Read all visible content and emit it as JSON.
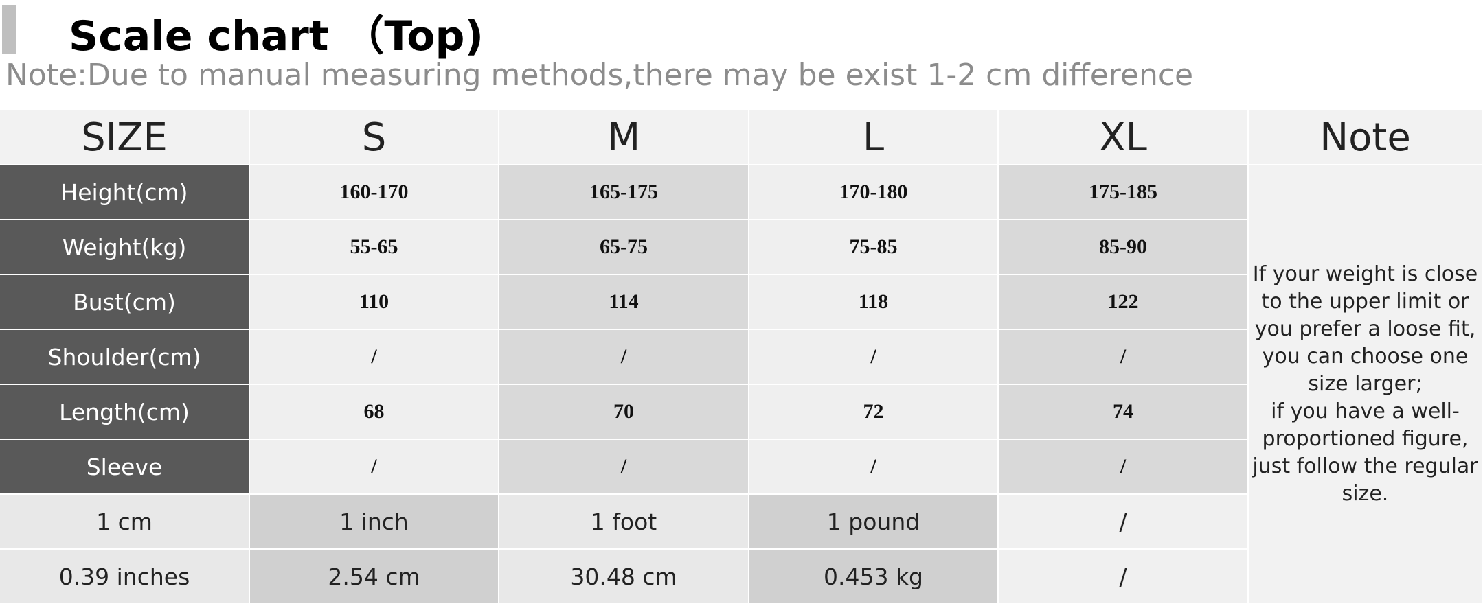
{
  "header": {
    "title": "Scale chart （Top)",
    "note": "Note:Due to manual measuring methods,there may be exist 1-2 cm difference"
  },
  "table": {
    "columns": [
      "SIZE",
      "S",
      "M",
      "L",
      "XL",
      "Note"
    ],
    "rows": [
      [
        "Height(cm)",
        "160-170",
        "165-175",
        "170-180",
        "175-185"
      ],
      [
        "Weight(kg)",
        "55-65",
        "65-75",
        "75-85",
        "85-90"
      ],
      [
        "Bust(cm)",
        "110",
        "114",
        "118",
        "122"
      ],
      [
        "Shoulder(cm)",
        "/",
        "/",
        "/",
        "/"
      ],
      [
        "Length(cm)",
        "68",
        "70",
        "72",
        "74"
      ],
      [
        "Sleeve",
        "/",
        "/",
        "/",
        "/"
      ]
    ],
    "conversions": [
      [
        "1 cm",
        "1 inch",
        "1 foot",
        "1 pound",
        "/"
      ],
      [
        "0.39 inches",
        "2.54 cm",
        "30.48 cm",
        "0.453 kg",
        "/"
      ]
    ],
    "note_lines": [
      "If your weight is close",
      "to the upper limit or",
      "you prefer a loose fit,",
      "you can choose one",
      "size larger;",
      "if you have a well-",
      "proportioned figure,",
      "just follow the regular",
      "size."
    ]
  }
}
